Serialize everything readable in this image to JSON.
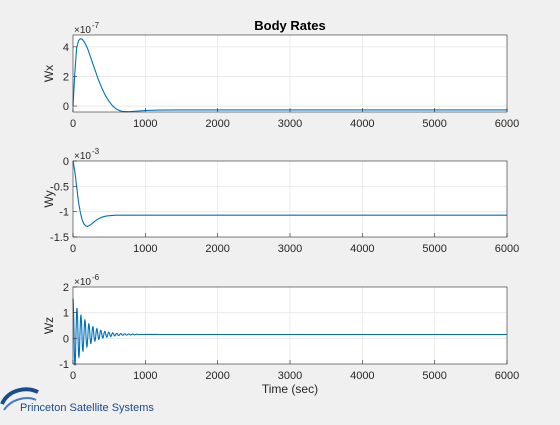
{
  "window": {
    "background": "#f0f0f0",
    "logo_text": "Princeton Satellite Systems",
    "logo_color": "#1a4b8c"
  },
  "chart_data": [
    {
      "type": "line",
      "title": "Body Rates",
      "xlabel": "",
      "ylabel": "Wx",
      "exponent_label": "×10",
      "exponent_power": "-7",
      "xlim": [
        0,
        6000
      ],
      "ylim": [
        -0.4,
        4.8
      ],
      "xticks": [
        0,
        1000,
        2000,
        3000,
        4000,
        5000,
        6000
      ],
      "xtick_labels": [
        "0",
        "1000",
        "2000",
        "3000",
        "4000",
        "5000",
        "6000"
      ],
      "yticks": [
        0,
        2,
        4
      ],
      "ytick_labels": [
        "0",
        "2",
        "4"
      ],
      "grid": true,
      "color": "#0072bd",
      "x": [
        0,
        25,
        50,
        75,
        100,
        130,
        160,
        200,
        250,
        300,
        350,
        400,
        450,
        500,
        550,
        600,
        650,
        700,
        750,
        800,
        900,
        1000,
        1200,
        1400,
        1600,
        2000,
        3000,
        4000,
        5000,
        6000
      ],
      "y": [
        0.0,
        2.2,
        3.9,
        4.4,
        4.55,
        4.5,
        4.3,
        3.9,
        3.2,
        2.5,
        1.8,
        1.2,
        0.7,
        0.3,
        0.0,
        -0.2,
        -0.32,
        -0.37,
        -0.38,
        -0.37,
        -0.33,
        -0.3,
        -0.27,
        -0.26,
        -0.26,
        -0.26,
        -0.26,
        -0.26,
        -0.26,
        -0.26
      ]
    },
    {
      "type": "line",
      "title": "",
      "xlabel": "",
      "ylabel": "Wy",
      "exponent_label": "×10",
      "exponent_power": "-3",
      "xlim": [
        0,
        6000
      ],
      "ylim": [
        -1.5,
        0
      ],
      "xticks": [
        0,
        1000,
        2000,
        3000,
        4000,
        5000,
        6000
      ],
      "xtick_labels": [
        "0",
        "1000",
        "2000",
        "3000",
        "4000",
        "5000",
        "6000"
      ],
      "yticks": [
        -1.5,
        -1,
        -0.5,
        0
      ],
      "ytick_labels": [
        "-1.5",
        "-1",
        "-0.5",
        "0"
      ],
      "grid": true,
      "color": "#0072bd",
      "x": [
        0,
        25,
        50,
        75,
        100,
        125,
        150,
        175,
        200,
        230,
        260,
        300,
        350,
        400,
        450,
        500,
        600,
        700,
        800,
        1000,
        1500,
        2000,
        3000,
        4000,
        5000,
        6000
      ],
      "y": [
        0.0,
        -0.2,
        -0.5,
        -0.8,
        -1.0,
        -1.15,
        -1.24,
        -1.28,
        -1.29,
        -1.27,
        -1.24,
        -1.19,
        -1.14,
        -1.11,
        -1.09,
        -1.08,
        -1.07,
        -1.07,
        -1.07,
        -1.07,
        -1.07,
        -1.07,
        -1.07,
        -1.07,
        -1.07,
        -1.07
      ]
    },
    {
      "type": "line",
      "title": "",
      "xlabel": "Time (sec)",
      "ylabel": "Wz",
      "exponent_label": "×10",
      "exponent_power": "-6",
      "xlim": [
        0,
        6000
      ],
      "ylim": [
        -1,
        2
      ],
      "xticks": [
        0,
        1000,
        2000,
        3000,
        4000,
        5000,
        6000
      ],
      "xtick_labels": [
        "0",
        "1000",
        "2000",
        "3000",
        "4000",
        "5000",
        "6000"
      ],
      "yticks": [
        -1,
        0,
        1,
        2
      ],
      "ytick_labels": [
        "-1",
        "0",
        "1",
        "2"
      ],
      "grid": true,
      "color": "#0072bd",
      "baseline": 0.15,
      "oscillation_start": 1.55,
      "oscillation_period": 55,
      "oscillation_decay": 180,
      "x_end": 6000
    }
  ]
}
